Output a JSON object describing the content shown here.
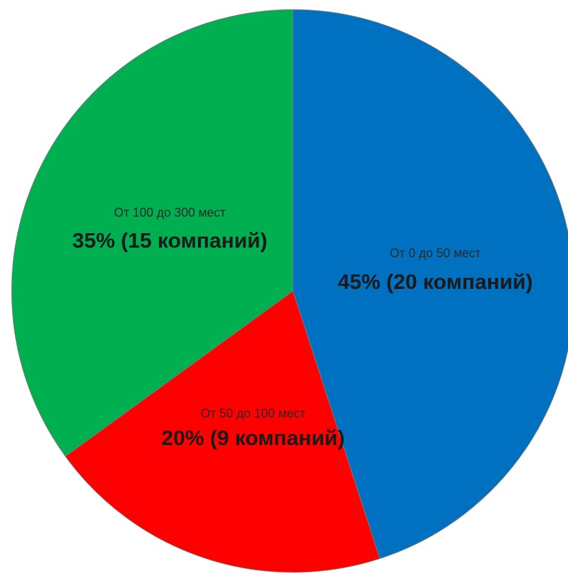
{
  "chart_data": {
    "type": "pie",
    "start_angle_deg": 0,
    "direction": "clockwise",
    "slices": [
      {
        "category": "От 0 до 50 мест",
        "value": 45,
        "label": "45% (20 компаний)",
        "color": "#0070c0"
      },
      {
        "category": "От 50 до 100 мест",
        "value": 20,
        "label": "20% (9 компаний)",
        "color": "#ff0000"
      },
      {
        "category": "От 100 до 300 мест",
        "value": 35,
        "label": "35% (15 компаний)",
        "color": "#00b050"
      }
    ]
  }
}
